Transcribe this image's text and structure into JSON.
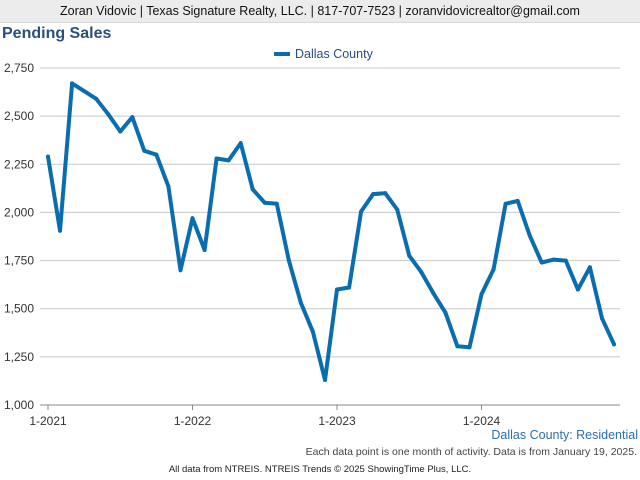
{
  "header": {
    "contact": "Zoran Vidovic | Texas Signature Realty, LLC. | 817-707-7523 | zoranvidovicrealtor@gmail.com"
  },
  "chart_data": {
    "type": "line",
    "title": "Pending Sales",
    "xlabel": "",
    "ylabel": "",
    "ylim": [
      1000,
      2750
    ],
    "y_ticks": [
      1000,
      1250,
      1500,
      1750,
      2000,
      2250,
      2500,
      2750
    ],
    "y_tick_labels": [
      "1,000",
      "1,250",
      "1,500",
      "1,750",
      "2,000",
      "2,250",
      "2,500",
      "2,750"
    ],
    "x_tick_labels": [
      "1-2021",
      "1-2022",
      "1-2023",
      "1-2024"
    ],
    "grid": true,
    "legend": "top-center",
    "series": [
      {
        "name": "Dallas County",
        "color": "#0a6db0",
        "x": [
          "1-2021",
          "2-2021",
          "3-2021",
          "4-2021",
          "5-2021",
          "6-2021",
          "7-2021",
          "8-2021",
          "9-2021",
          "10-2021",
          "11-2021",
          "12-2021",
          "1-2022",
          "2-2022",
          "3-2022",
          "4-2022",
          "5-2022",
          "6-2022",
          "7-2022",
          "8-2022",
          "9-2022",
          "10-2022",
          "11-2022",
          "12-2022",
          "1-2023",
          "2-2023",
          "3-2023",
          "4-2023",
          "5-2023",
          "6-2023",
          "7-2023",
          "8-2023",
          "9-2023",
          "10-2023",
          "11-2023",
          "12-2023",
          "1-2024",
          "2-2024",
          "3-2024",
          "4-2024",
          "5-2024",
          "6-2024",
          "7-2024",
          "8-2024",
          "9-2024",
          "10-2024",
          "11-2024",
          "12-2024"
        ],
        "values": [
          2290,
          1905,
          2670,
          2630,
          2590,
          2510,
          2420,
          2495,
          2320,
          2300,
          2135,
          1700,
          1970,
          1805,
          2280,
          2270,
          2360,
          2120,
          2050,
          2045,
          1750,
          1530,
          1380,
          1130,
          1600,
          1610,
          2005,
          2095,
          2100,
          2015,
          1775,
          1690,
          1580,
          1480,
          1305,
          1300,
          1575,
          1705,
          2045,
          2060,
          1880,
          1740,
          1755,
          1750,
          1600,
          1715,
          1450,
          1315
        ]
      }
    ]
  },
  "caption": "Dallas County: Residential",
  "note": "Each data point is one month of activity. Data is from January 19, 2025.",
  "footer": "All data from NTREIS. NTREIS Trends © 2025 ShowingTime Plus, LLC."
}
